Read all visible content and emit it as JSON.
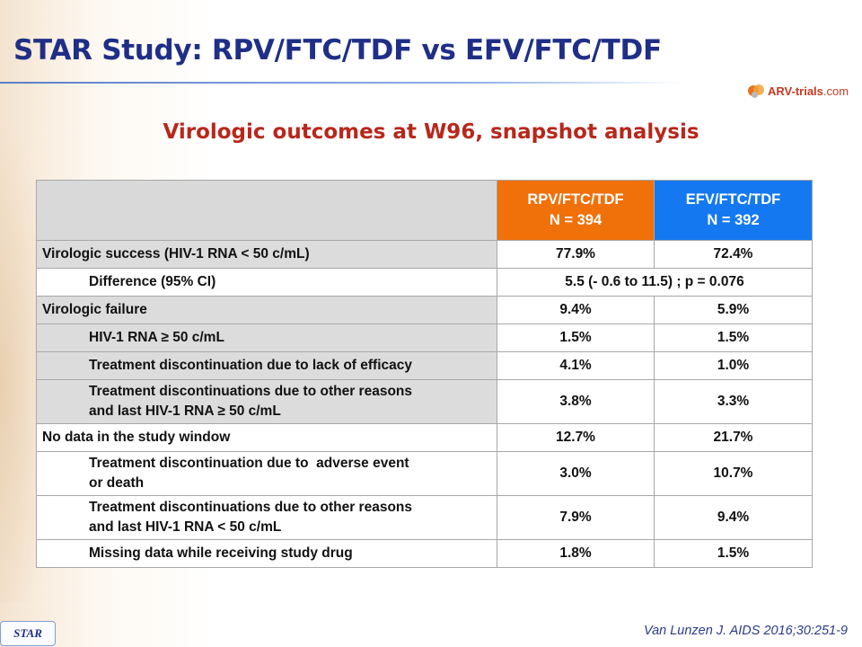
{
  "title": "STAR Study: RPV/FTC/TDF vs EFV/FTC/TDF",
  "logo": {
    "name": "ARV-trials",
    "suffix": ".com"
  },
  "subtitle": "Virologic outcomes at W96, snapshot analysis",
  "table": {
    "columns": [
      {
        "name": "RPV/FTC/TDF",
        "n": "N = 394",
        "color": "#f0700a"
      },
      {
        "name": "EFV/FTC/TDF",
        "n": "N = 392",
        "color": "#1479f0"
      }
    ],
    "rows": [
      {
        "line1": "Virologic success (HIV-1 RNA < 50 c/mL)",
        "rpv": "77.9%",
        "efv": "72.4%"
      },
      {
        "line1": "Difference (95% CI)",
        "combined": "5.5 (- 0.6 to 11.5) ; p = 0.076"
      },
      {
        "line1": "Virologic failure",
        "rpv": "9.4%",
        "efv": "5.9%"
      },
      {
        "line1": "HIV-1 RNA ≥ 50 c/mL",
        "rpv": "1.5%",
        "efv": "1.5%"
      },
      {
        "line1": "Treatment discontinuation due to lack of efficacy",
        "rpv": "4.1%",
        "efv": "1.0%"
      },
      {
        "line1": "Treatment discontinuations due to other reasons",
        "line2": "and last HIV-1 RNA ≥ 50 c/mL",
        "rpv": "3.8%",
        "efv": "3.3%"
      },
      {
        "line1": "No data in the study window",
        "rpv": "12.7%",
        "efv": "21.7%"
      },
      {
        "line1": "Treatment discontinuation due to  adverse event",
        "line2": "or death",
        "rpv": "3.0%",
        "efv": "10.7%"
      },
      {
        "line1": "Treatment discontinuations due to other reasons",
        "line2": "and last HIV-1 RNA < 50 c/mL",
        "rpv": "7.9%",
        "efv": "9.4%"
      },
      {
        "line1": "Missing data while receiving study drug",
        "rpv": "1.8%",
        "efv": "1.5%"
      }
    ]
  },
  "footer": {
    "badge": "STAR",
    "citation": "Van Lunzen J. AIDS 2016;30:251-9"
  }
}
